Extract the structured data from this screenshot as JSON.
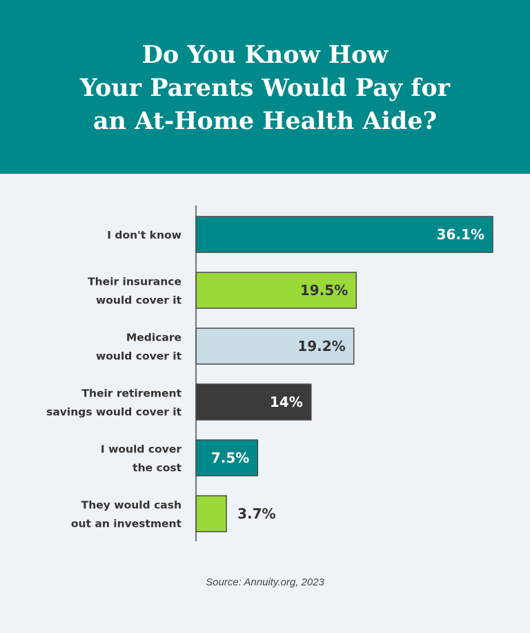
{
  "header": {
    "title_lines": [
      "Do You Know How",
      "Your Parents Would Pay for",
      "an At-Home Health Aide?"
    ]
  },
  "chart_data": {
    "type": "bar",
    "orientation": "horizontal",
    "title": "Do You Know How Your Parents Would Pay for an At-Home Health Aide?",
    "categories": [
      [
        "I don't know"
      ],
      [
        "Their insurance",
        "would cover it"
      ],
      [
        "Medicare",
        "would cover it"
      ],
      [
        "Their retirement",
        "savings would cover it"
      ],
      [
        "I would cover",
        "the cost"
      ],
      [
        "They would cash",
        "out an investment"
      ]
    ],
    "values": [
      36.1,
      19.5,
      19.2,
      14,
      7.5,
      3.7
    ],
    "value_labels": [
      "36.1%",
      "19.5%",
      "19.2%",
      "14%",
      "7.5%",
      "3.7%"
    ],
    "bar_colors": [
      "#00898a",
      "#9bd939",
      "#c9dde6",
      "#3b3b3b",
      "#00898a",
      "#9bd939"
    ],
    "label_colors": [
      "#ffffff",
      "#333333",
      "#333333",
      "#ffffff",
      "#ffffff",
      "#333333"
    ],
    "xlim": [
      0,
      36.1
    ],
    "grid": false,
    "legend": "none"
  },
  "source": "Source: Annuity.org, 2023"
}
